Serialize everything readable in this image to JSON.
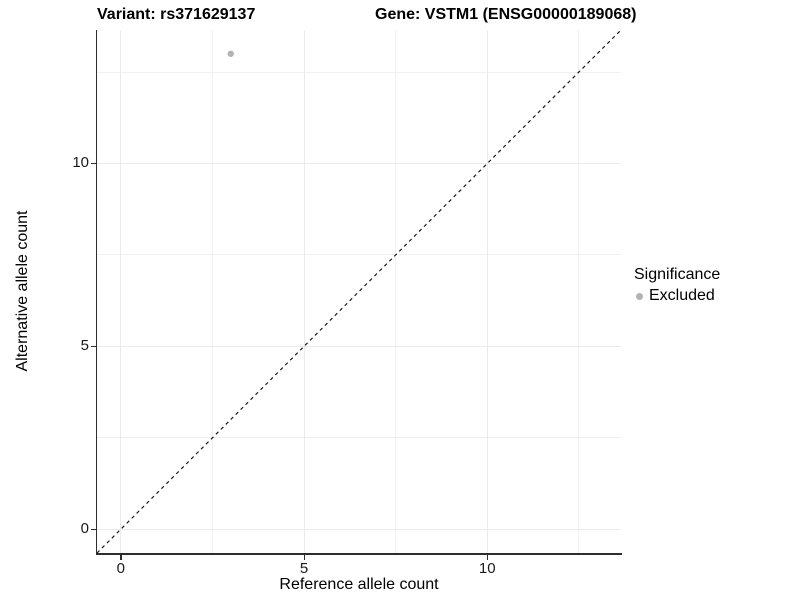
{
  "header": {
    "variant_title": "Variant: rs371629137",
    "gene_title": "Gene: VSTM1 (ENSG00000189068)"
  },
  "chart_data": {
    "type": "scatter",
    "title": "Variant: rs371629137 | Gene: VSTM1 (ENSG00000189068)",
    "xlabel": "Reference allele count",
    "ylabel": "Alternative allele count",
    "xlim": [
      -0.65,
      13.65
    ],
    "ylim": [
      -0.65,
      13.65
    ],
    "x_major_ticks": [
      0,
      5,
      10
    ],
    "x_minor_ticks": [
      2.5,
      7.5,
      12.5
    ],
    "y_major_ticks": [
      0,
      5,
      10
    ],
    "y_minor_ticks": [
      2.5,
      7.5,
      12.5
    ],
    "grid": true,
    "points": [
      {
        "x": 3,
        "y": 13,
        "series": "Excluded"
      }
    ],
    "reference_line": {
      "slope": 1,
      "intercept": 0,
      "style": "dashed"
    },
    "legend": {
      "title": "Significance",
      "position": "right",
      "items": [
        {
          "label": "Excluded",
          "marker": "circle"
        }
      ]
    }
  },
  "colors": {
    "point_gray": "#b3b3b3",
    "gridline_major": "#ebebeb",
    "gridline_minor": "#f0f0f0",
    "axis_line": "#2e2e2e",
    "dashed_line": "#1a1a1a",
    "background": "#ffffff"
  }
}
